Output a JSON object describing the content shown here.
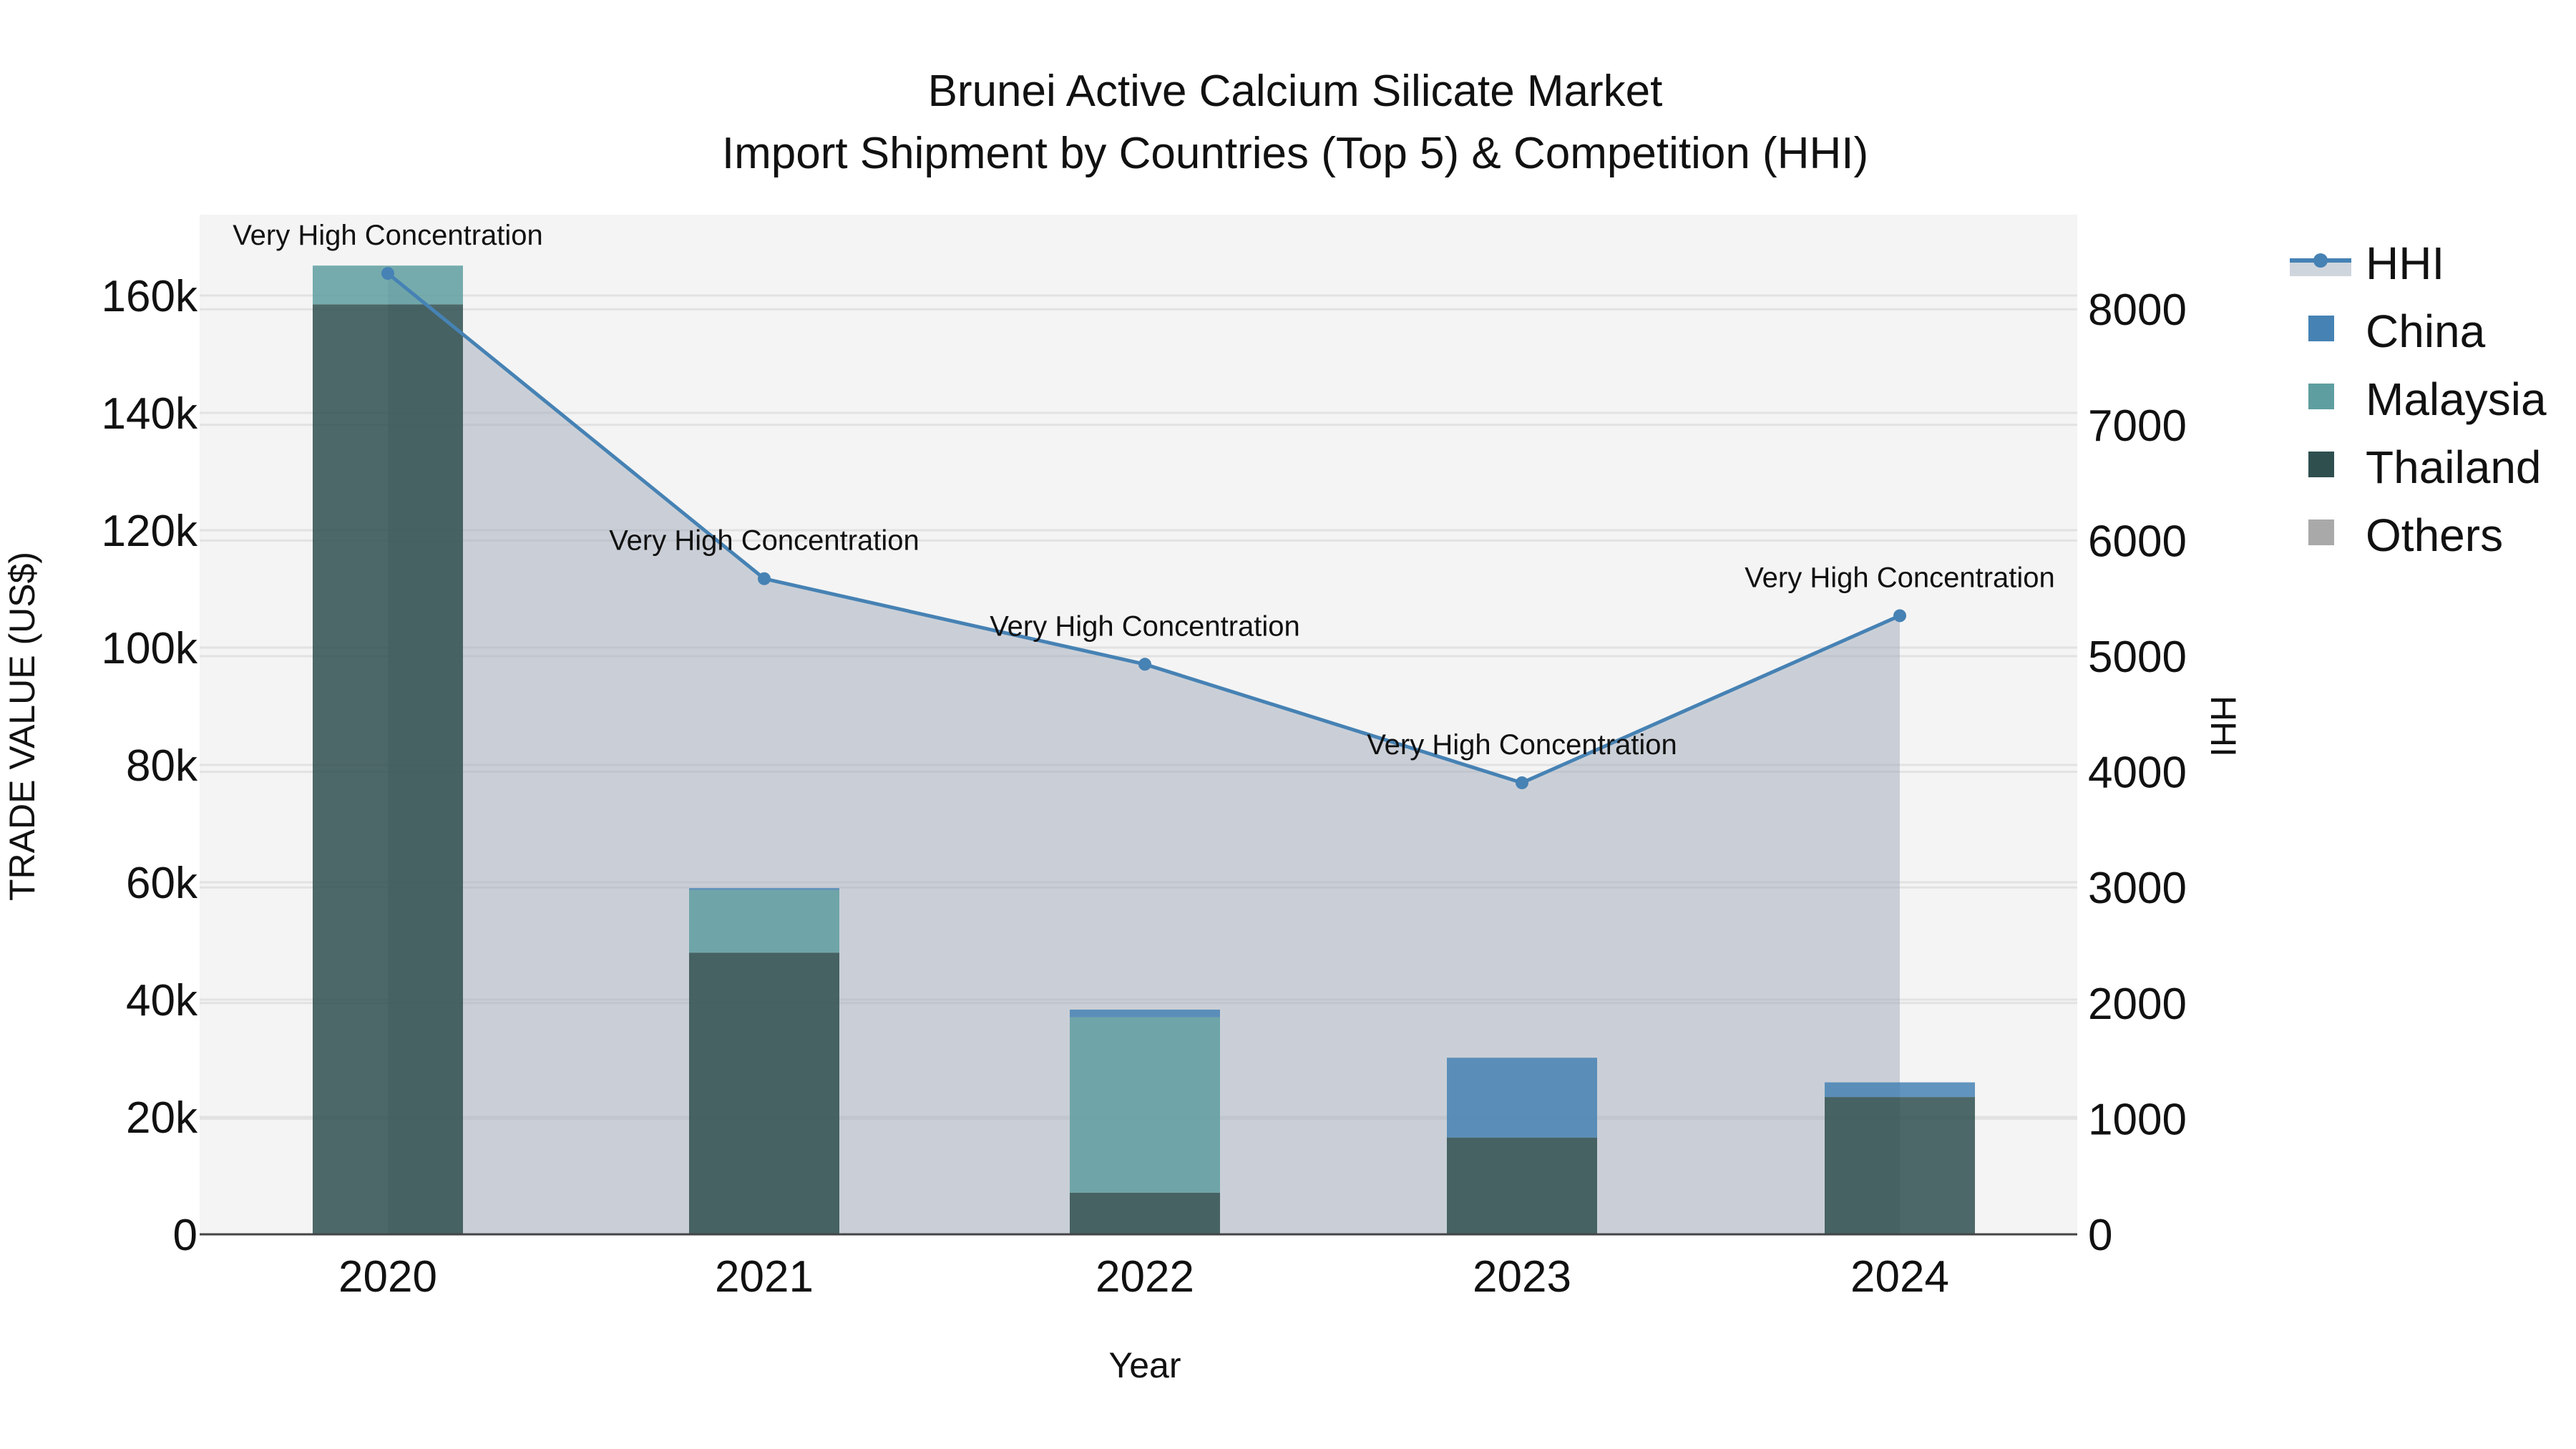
{
  "title": {
    "line1": "Brunei Active Calcium Silicate Market",
    "line2": "Import Shipment by Countries (Top 5) & Competition (HHI)"
  },
  "axes": {
    "x_title": "Year",
    "y_left_title": "TRADE VALUE (US$)",
    "y_right_title": "HHI",
    "y_left_ticks": [
      "0",
      "20k",
      "40k",
      "60k",
      "80k",
      "100k",
      "120k",
      "140k",
      "160k"
    ],
    "y_right_ticks": [
      "0",
      "1000",
      "2000",
      "3000",
      "4000",
      "5000",
      "6000",
      "7000",
      "8000"
    ]
  },
  "legend": {
    "items": [
      {
        "label": "HHI",
        "color": "#4682b4",
        "type": "line-area"
      },
      {
        "label": "China",
        "color": "#4682b4",
        "type": "bar"
      },
      {
        "label": "Malaysia",
        "color": "#5f9ea0",
        "type": "bar"
      },
      {
        "label": "Thailand",
        "color": "#2f4f4f",
        "type": "bar"
      },
      {
        "label": "Others",
        "color": "#a9a9a9",
        "type": "bar"
      }
    ]
  },
  "annotations": [
    "Very High Concentration",
    "Very High Concentration",
    "Very High Concentration",
    "Very High Concentration",
    "Very High Concentration"
  ],
  "colors": {
    "plot_bg": "#f4f4f4",
    "hhi_line": "#4682b4",
    "hhi_fill": "rgba(176,186,199,0.6)",
    "china": "#4682b4",
    "malaysia": "#5f9ea0",
    "thailand": "#2f4f4f",
    "others": "#a9a9a9"
  },
  "chart_data": {
    "type": "bar",
    "title": "Brunei Active Calcium Silicate Market — Import Shipment by Countries (Top 5) & Competition (HHI)",
    "xlabel": "Year",
    "ylabel": "TRADE VALUE (US$)",
    "y2label": "HHI",
    "categories": [
      "2020",
      "2021",
      "2022",
      "2023",
      "2024"
    ],
    "stacked": true,
    "series": [
      {
        "name": "Thailand",
        "axis": "y",
        "values": [
          158500,
          48000,
          7100,
          16500,
          23400
        ]
      },
      {
        "name": "Malaysia",
        "axis": "y",
        "values": [
          6600,
          10700,
          29900,
          0,
          0
        ]
      },
      {
        "name": "China",
        "axis": "y",
        "values": [
          0,
          300,
          1300,
          13600,
          2500
        ]
      },
      {
        "name": "Others",
        "axis": "y",
        "values": [
          0,
          0,
          0,
          0,
          0
        ]
      },
      {
        "name": "HHI",
        "axis": "y2",
        "type": "line",
        "values": [
          8310,
          5670,
          4930,
          3905,
          5350
        ]
      }
    ],
    "annotations": [
      {
        "x": "2020",
        "text": "Very High Concentration"
      },
      {
        "x": "2021",
        "text": "Very High Concentration"
      },
      {
        "x": "2022",
        "text": "Very High Concentration"
      },
      {
        "x": "2023",
        "text": "Very High Concentration"
      },
      {
        "x": "2024",
        "text": "Very High Concentration"
      }
    ],
    "ylim": [
      0,
      174000
    ],
    "y2lim": [
      0,
      8800
    ],
    "grid": true,
    "legend_position": "right"
  }
}
